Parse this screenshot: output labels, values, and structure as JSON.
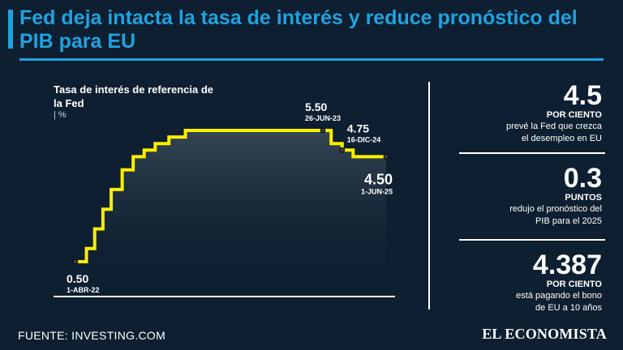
{
  "header": {
    "title": "Fed deja intacta la tasa de interés y reduce pronóstico del PIB para EU"
  },
  "chart_data": {
    "type": "line",
    "step": true,
    "title": "Tasa de interés de referencia de la Fed",
    "unit_label": "| %",
    "xlabel": "",
    "ylabel": "%",
    "ylim": [
      0,
      5.5
    ],
    "series": [
      {
        "name": "Tasa de interés de referencia de la Fed",
        "points": [
          {
            "x": 0,
            "y": 0.5
          },
          {
            "x": 4,
            "y": 1.0
          },
          {
            "x": 7,
            "y": 1.75
          },
          {
            "x": 10,
            "y": 2.5
          },
          {
            "x": 13,
            "y": 3.25
          },
          {
            "x": 17,
            "y": 4.0
          },
          {
            "x": 21,
            "y": 4.5
          },
          {
            "x": 25,
            "y": 4.75
          },
          {
            "x": 29,
            "y": 5.0
          },
          {
            "x": 34,
            "y": 5.25
          },
          {
            "x": 40,
            "y": 5.5
          },
          {
            "x": 90,
            "y": 5.5
          },
          {
            "x": 93,
            "y": 5.0
          },
          {
            "x": 97,
            "y": 4.75
          },
          {
            "x": 101,
            "y": 4.5
          },
          {
            "x": 113,
            "y": 4.5
          }
        ]
      }
    ],
    "annotations": [
      {
        "value": "0.50",
        "date": "1-ABR-22",
        "x": 0,
        "y": 0.5,
        "anchor": "below-left"
      },
      {
        "value": "5.50",
        "date": "26-JUN-23",
        "x": 90,
        "y": 5.5,
        "anchor": "above-right"
      },
      {
        "value": "4.75",
        "date": "16-DIC-24",
        "x": 97,
        "y": 4.75,
        "anchor": "above-right"
      },
      {
        "value": "4.50",
        "date": "1-JUN-25",
        "x": 113,
        "y": 4.5,
        "anchor": "below-right"
      }
    ]
  },
  "stats": [
    {
      "value": "4.5",
      "unit": "POR CIENTO",
      "desc": [
        "prevé la Fed que crezca",
        "el desempleo en EU"
      ]
    },
    {
      "value": "0.3",
      "unit": "PUNTOS",
      "desc": [
        "redujo el pronóstico del",
        "PIB para el 2025"
      ]
    },
    {
      "value": "4.387",
      "unit": "POR CIENTO",
      "desc": [
        "está pagando el bono",
        "de EU a 10 años"
      ]
    }
  ],
  "footer": {
    "source": "FUENTE: INVESTING.COM",
    "logo": "EL ECONOMISTA"
  },
  "colors": {
    "accent": "#1fa3e0",
    "background": "#0d1f30",
    "line": "#ffee00"
  }
}
